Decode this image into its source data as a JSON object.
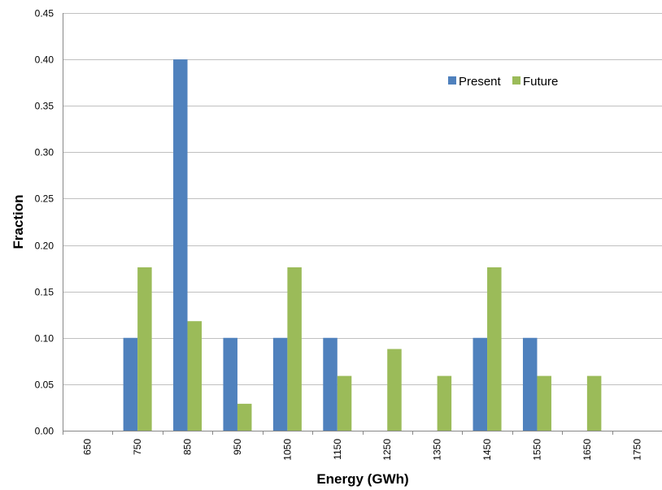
{
  "chart_data": {
    "type": "bar",
    "categories": [
      "650",
      "750",
      "850",
      "950",
      "1050",
      "1150",
      "1250",
      "1350",
      "1450",
      "1550",
      "1650",
      "1750"
    ],
    "series": [
      {
        "name": "Present",
        "color": "#4F81BD",
        "values": [
          0,
          0.1,
          0.4,
          0.1,
          0.1,
          0.1,
          0,
          0,
          0.1,
          0.1,
          0,
          0
        ]
      },
      {
        "name": "Future",
        "color": "#9BBB59",
        "values": [
          0,
          0.176,
          0.118,
          0.029,
          0.176,
          0.059,
          0.088,
          0.059,
          0.176,
          0.059,
          0.059,
          0
        ]
      }
    ],
    "xlabel": "Energy (GWh)",
    "ylabel": "Fraction",
    "ylim": [
      0,
      0.45
    ],
    "yticks": [
      "0.00",
      "0.05",
      "0.10",
      "0.15",
      "0.20",
      "0.25",
      "0.30",
      "0.35",
      "0.40",
      "0.45"
    ],
    "grid": true,
    "legend_position": "top-right"
  }
}
